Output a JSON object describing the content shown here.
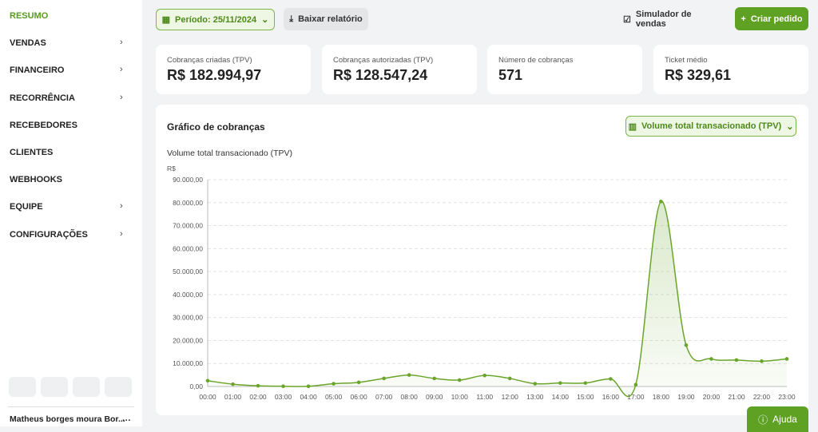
{
  "sidebar": {
    "items": [
      {
        "label": "RESUMO",
        "active": true,
        "expandable": false
      },
      {
        "label": "VENDAS",
        "active": false,
        "expandable": true
      },
      {
        "label": "FINANCEIRO",
        "active": false,
        "expandable": true
      },
      {
        "label": "RECORRÊNCIA",
        "active": false,
        "expandable": true
      },
      {
        "label": "RECEBEDORES",
        "active": false,
        "expandable": false
      },
      {
        "label": "CLIENTES",
        "active": false,
        "expandable": false
      },
      {
        "label": "WEBHOOKS",
        "active": false,
        "expandable": false
      },
      {
        "label": "EQUIPE",
        "active": false,
        "expandable": true
      },
      {
        "label": "CONFIGURAÇÕES",
        "active": false,
        "expandable": true
      }
    ],
    "user": "Matheus borges moura Bor..."
  },
  "topbar": {
    "period": "Período: 25/11/2024",
    "download": "Baixar relatório",
    "simulator": "Simulador de vendas",
    "create": "Criar pedido"
  },
  "cards": [
    {
      "label": "Cobranças criadas (TPV)",
      "value": "R$ 182.994,97"
    },
    {
      "label": "Cobranças autorizadas (TPV)",
      "value": "R$ 128.547,24"
    },
    {
      "label": "Número de cobranças",
      "value": "571"
    },
    {
      "label": "Ticket médio",
      "value": "R$ 329,61"
    }
  ],
  "help": "Ajuda",
  "chart_data": {
    "type": "line",
    "title": "Gráfico de cobranças",
    "selector": "Volume total transacionado (TPV)",
    "subtitle": "Volume total transacionado (TPV)",
    "y_unit": "R$",
    "color": "#6aa52b",
    "grid": true,
    "categories": [
      "00:00",
      "01:00",
      "02:00",
      "03:00",
      "04:00",
      "05:00",
      "06:00",
      "07:00",
      "08:00",
      "09:00",
      "10:00",
      "11:00",
      "12:00",
      "13:00",
      "14:00",
      "15:00",
      "16:00",
      "17:00",
      "18:00",
      "19:00",
      "20:00",
      "21:00",
      "22:00",
      "23:00"
    ],
    "values": [
      2500,
      1000,
      300,
      100,
      100,
      1200,
      1800,
      3500,
      5000,
      3500,
      2800,
      4800,
      3500,
      1200,
      1500,
      1500,
      3300,
      800,
      80500,
      18000,
      12000,
      11500,
      11000,
      12000
    ],
    "ylim": [
      0,
      90000
    ],
    "yticks": [
      {
        "value": 0,
        "label": "0,00"
      },
      {
        "value": 10000,
        "label": "10.000,00"
      },
      {
        "value": 20000,
        "label": "20.000,00"
      },
      {
        "value": 30000,
        "label": "30.000,00"
      },
      {
        "value": 40000,
        "label": "40.000,00"
      },
      {
        "value": 50000,
        "label": "50.000,00"
      },
      {
        "value": 60000,
        "label": "60.000,00"
      },
      {
        "value": 70000,
        "label": "70.000,00"
      },
      {
        "value": 80000,
        "label": "80.000,00"
      },
      {
        "value": 90000,
        "label": "90.000,00"
      }
    ]
  }
}
